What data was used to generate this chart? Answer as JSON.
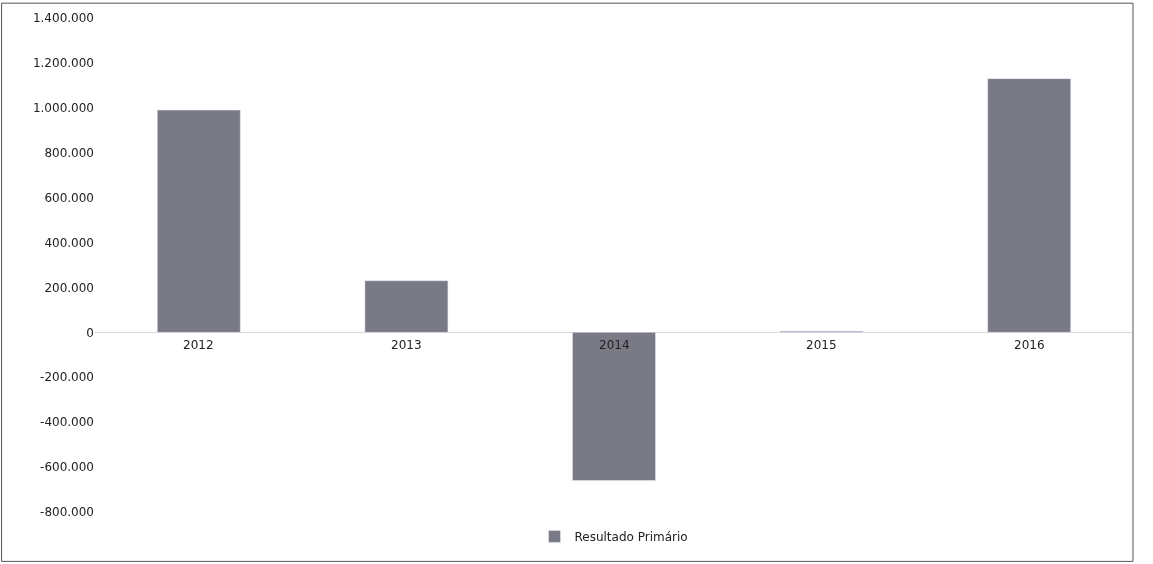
{
  "chart_data": {
    "type": "bar",
    "categories": [
      "2012",
      "2013",
      "2014",
      "2015",
      "2016"
    ],
    "series": [
      {
        "name": "Resultado Primário",
        "color": "#7a7a86",
        "values": [
          990000,
          230000,
          -660000,
          5000,
          1130000
        ]
      }
    ],
    "ylim": [
      -800000,
      1400000
    ],
    "yticks": [
      {
        "value": -800000,
        "label": "-800.000"
      },
      {
        "value": -600000,
        "label": "-600.000"
      },
      {
        "value": -400000,
        "label": "-400.000"
      },
      {
        "value": -200000,
        "label": "-200.000"
      },
      {
        "value": 0,
        "label": "0"
      },
      {
        "value": 200000,
        "label": "200.000"
      },
      {
        "value": 400000,
        "label": "400.000"
      },
      {
        "value": 600000,
        "label": "600.000"
      },
      {
        "value": 800000,
        "label": "800.000"
      },
      {
        "value": 1000000,
        "label": "1.000.000"
      },
      {
        "value": 1200000,
        "label": "1.200.000"
      },
      {
        "value": 1400000,
        "label": "1.400.000"
      }
    ],
    "grid": false,
    "legend": "bottom"
  }
}
